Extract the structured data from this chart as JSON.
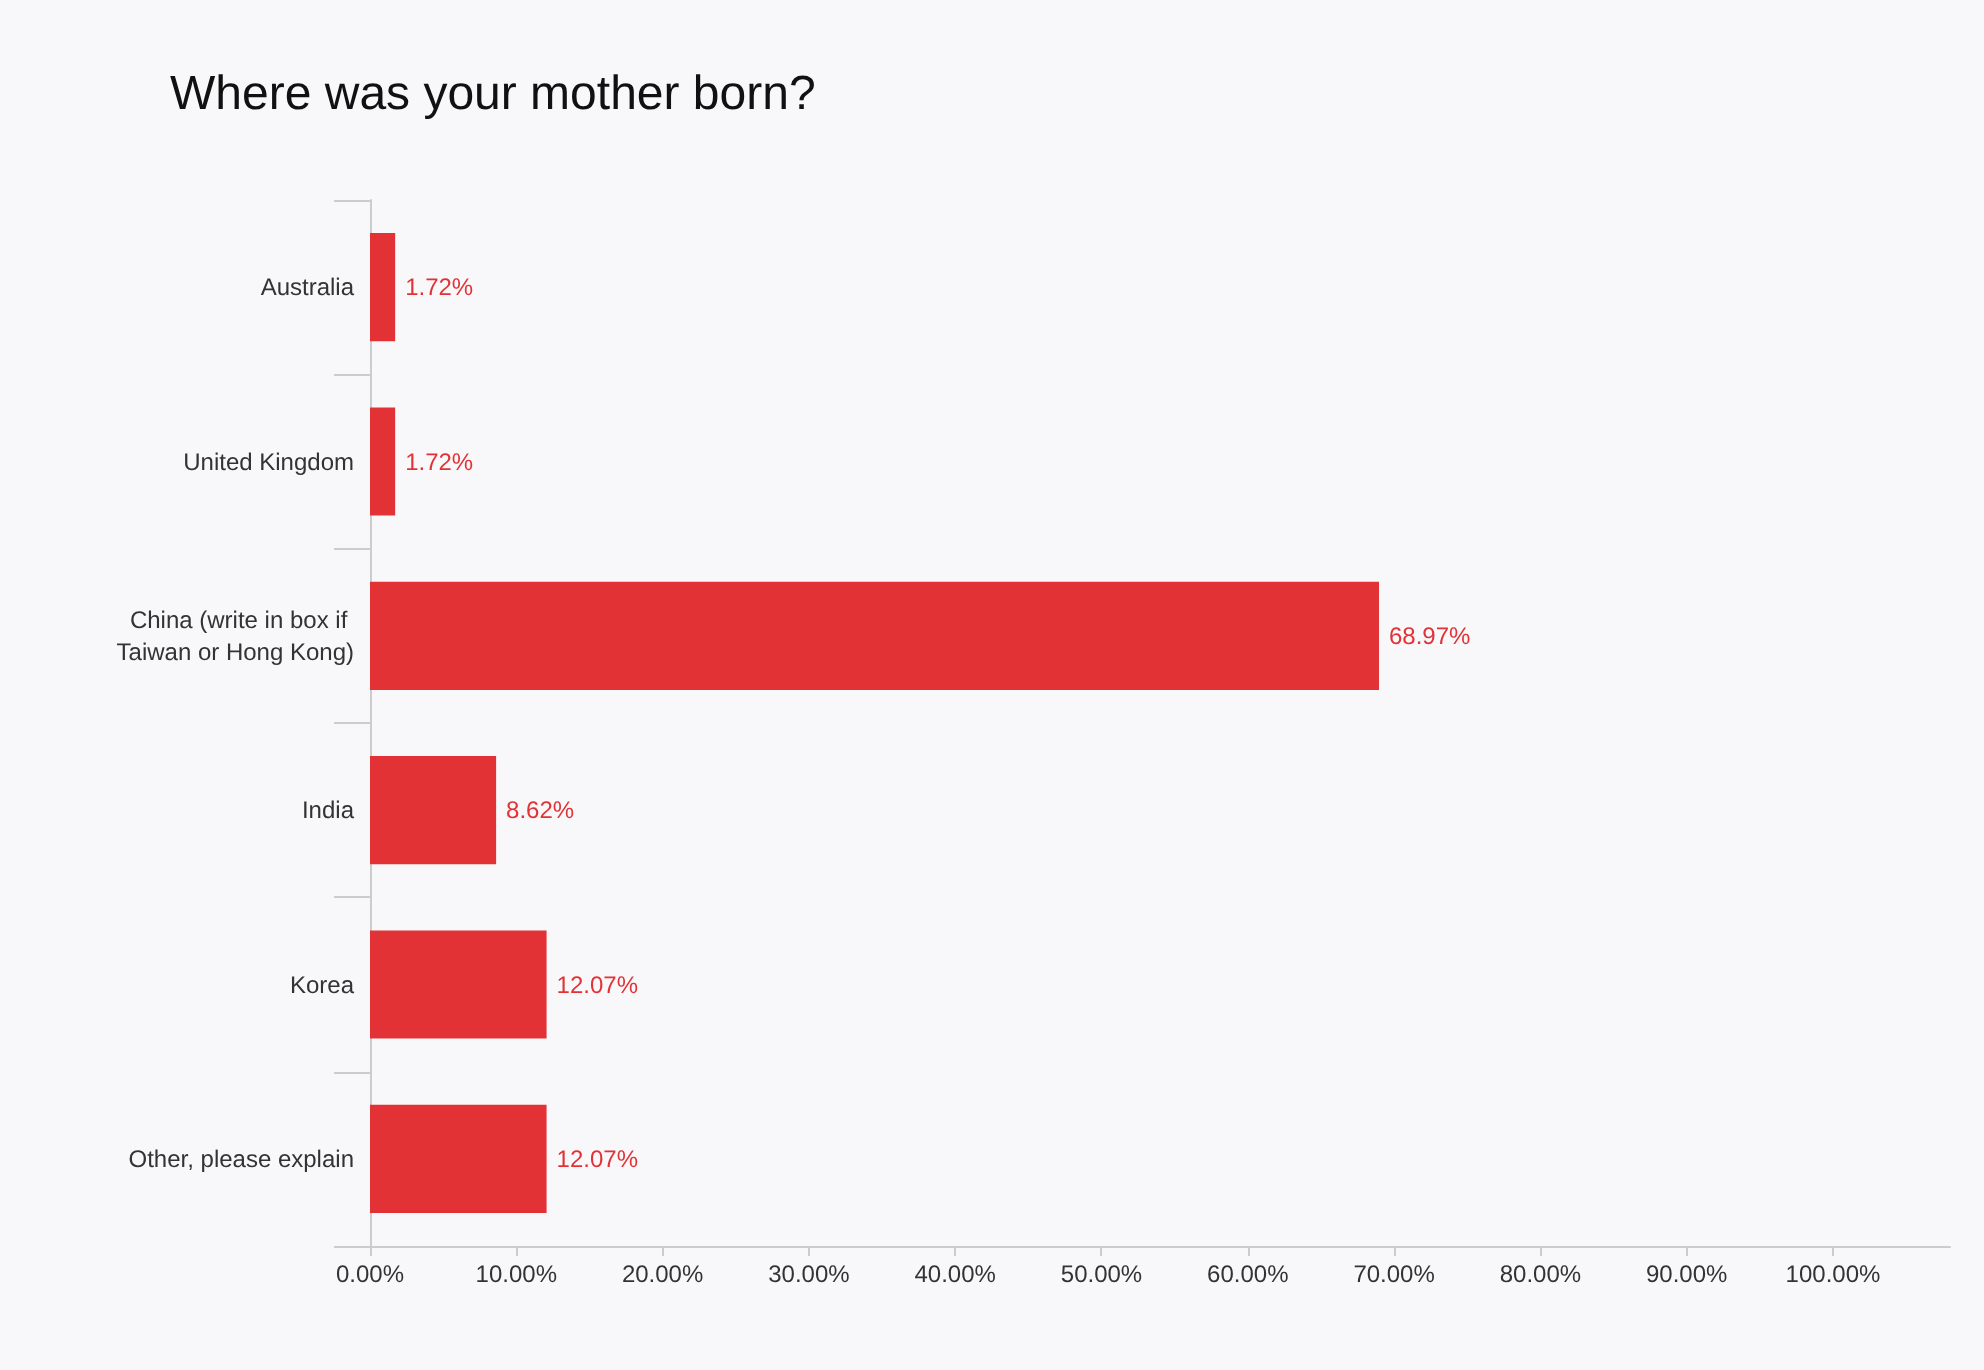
{
  "chart_data": {
    "type": "bar",
    "orientation": "horizontal",
    "title": "Where was your mother born?",
    "categories": [
      "Australia",
      "United Kingdom",
      "China (write in box if Taiwan or Hong Kong)",
      "India",
      "Korea",
      "Other, please explain"
    ],
    "values": [
      1.72,
      1.72,
      68.97,
      8.62,
      12.07,
      12.07
    ],
    "value_labels": [
      "1.72%",
      "1.72%",
      "68.97%",
      "8.62%",
      "12.07%",
      "12.07%"
    ],
    "color": "#e23236",
    "xlim": [
      0,
      108
    ],
    "xticks": [
      {
        "value": 0,
        "label": "0.00%"
      },
      {
        "value": 10,
        "label": "10.00%"
      },
      {
        "value": 20,
        "label": "20.00%"
      },
      {
        "value": 30,
        "label": "30.00%"
      },
      {
        "value": 40,
        "label": "40.00%"
      },
      {
        "value": 50,
        "label": "50.00%"
      },
      {
        "value": 60,
        "label": "60.00%"
      },
      {
        "value": 70,
        "label": "70.00%"
      },
      {
        "value": 80,
        "label": "80.00%"
      },
      {
        "value": 90,
        "label": "90.00%"
      },
      {
        "value": 100,
        "label": "100.00%"
      }
    ]
  }
}
